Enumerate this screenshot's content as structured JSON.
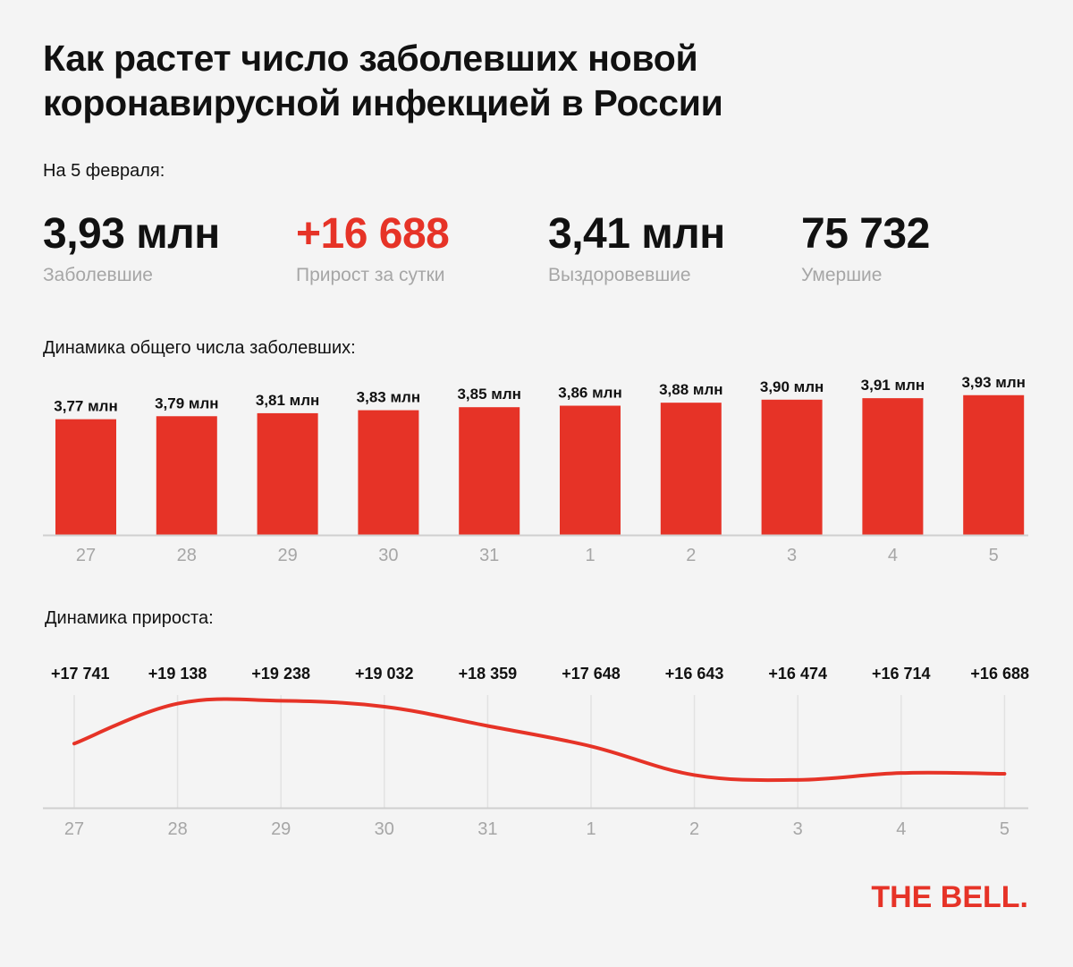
{
  "header": {
    "title": "Как растет число заболевших новой коронавирусной инфекцией в России",
    "date_label": "На 5 февраля:"
  },
  "stats": [
    {
      "value": "3,93 млн",
      "label": "Заболевшие",
      "accent": false
    },
    {
      "value": "+16 688",
      "label": "Прирост за сутки",
      "accent": true
    },
    {
      "value": "3,41 млн",
      "label": "Выздоровевшие",
      "accent": false
    },
    {
      "value": "75 732",
      "label": "Умершие",
      "accent": false
    }
  ],
  "colors": {
    "accent": "#e63327",
    "muted": "#a6a6a6",
    "text": "#111111"
  },
  "logo": "THE BELL.",
  "chart_data": [
    {
      "type": "bar",
      "title": "Динамика общего числа заболевших:",
      "categories": [
        "27",
        "28",
        "29",
        "30",
        "31",
        "1",
        "2",
        "3",
        "4",
        "5"
      ],
      "values": [
        3.77,
        3.79,
        3.81,
        3.83,
        3.85,
        3.86,
        3.88,
        3.9,
        3.91,
        3.93
      ],
      "data_labels": [
        "3,77 млн",
        "3,79 млн",
        "3,81 млн",
        "3,83 млн",
        "3,85 млн",
        "3,86 млн",
        "3,88 млн",
        "3,90 млн",
        "3,91 млн",
        "3,93 млн"
      ],
      "color": "#e63327"
    },
    {
      "type": "line",
      "title": "Динамика прироста:",
      "categories": [
        "27",
        "28",
        "29",
        "30",
        "31",
        "1",
        "2",
        "3",
        "4",
        "5"
      ],
      "values": [
        17741,
        19138,
        19238,
        19032,
        18359,
        17648,
        16643,
        16474,
        16714,
        16688
      ],
      "data_labels": [
        "+17 741",
        "+19 138",
        "+19 238",
        "+19 032",
        "+18 359",
        "+17 648",
        "+16 643",
        "+16 474",
        "+16 714",
        "+16 688"
      ],
      "ylim": [
        15500,
        19500
      ],
      "grid": true,
      "color": "#e63327"
    }
  ]
}
